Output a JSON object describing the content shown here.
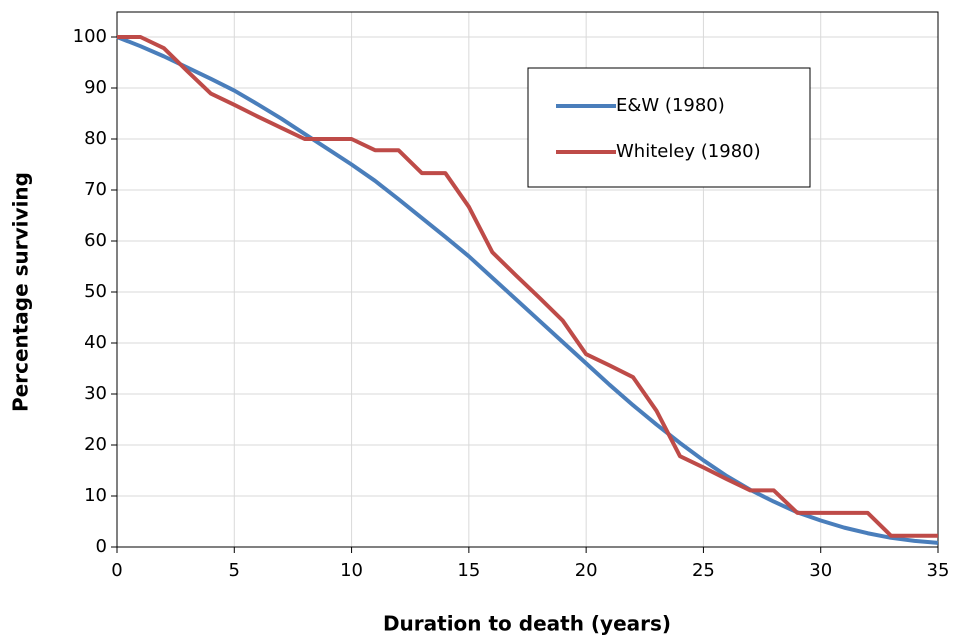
{
  "chart_data": {
    "type": "line",
    "x_label": "Duration to death (years)",
    "y_label": "Percentage surviving",
    "x": [
      0,
      1,
      2,
      3,
      4,
      5,
      6,
      7,
      8,
      9,
      10,
      11,
      12,
      13,
      14,
      15,
      16,
      17,
      18,
      19,
      20,
      21,
      22,
      23,
      24,
      25,
      26,
      27,
      28,
      29,
      30,
      31,
      32,
      33,
      34,
      35
    ],
    "series": [
      {
        "name": "E&W (1980)",
        "color": "#4a7ebb",
        "values": [
          100,
          98.2,
          96.2,
          94,
          91.8,
          89.5,
          86.8,
          84,
          81,
          78,
          75,
          71.8,
          68.2,
          64.5,
          60.8,
          57,
          52.8,
          48.6,
          44.4,
          40.2,
          36,
          31.8,
          27.8,
          24,
          20.4,
          17,
          13.9,
          11.2,
          8.9,
          6.8,
          5.2,
          3.8,
          2.7,
          1.8,
          1.2,
          0.8
        ]
      },
      {
        "name": "Whiteley (1980)",
        "color": "#be4b48",
        "values": [
          100,
          100,
          97.8,
          93.3,
          88.9,
          86.7,
          84.4,
          82.2,
          80,
          80,
          80,
          77.8,
          77.8,
          73.3,
          73.3,
          66.7,
          57.8,
          53.3,
          48.9,
          44.4,
          37.8,
          35.6,
          33.3,
          26.7,
          17.8,
          15.6,
          13.3,
          11.1,
          11.1,
          6.7,
          6.7,
          6.7,
          6.7,
          2.2,
          2.2,
          2.2
        ]
      }
    ],
    "xlim": [
      0,
      35
    ],
    "xticks": [
      0,
      5,
      10,
      15,
      20,
      25,
      30,
      35
    ],
    "ylim": [
      0,
      100
    ],
    "yticks": [
      0,
      10,
      20,
      30,
      40,
      50,
      60,
      70,
      80,
      90,
      100
    ],
    "grid": true,
    "legend": "upper right"
  }
}
